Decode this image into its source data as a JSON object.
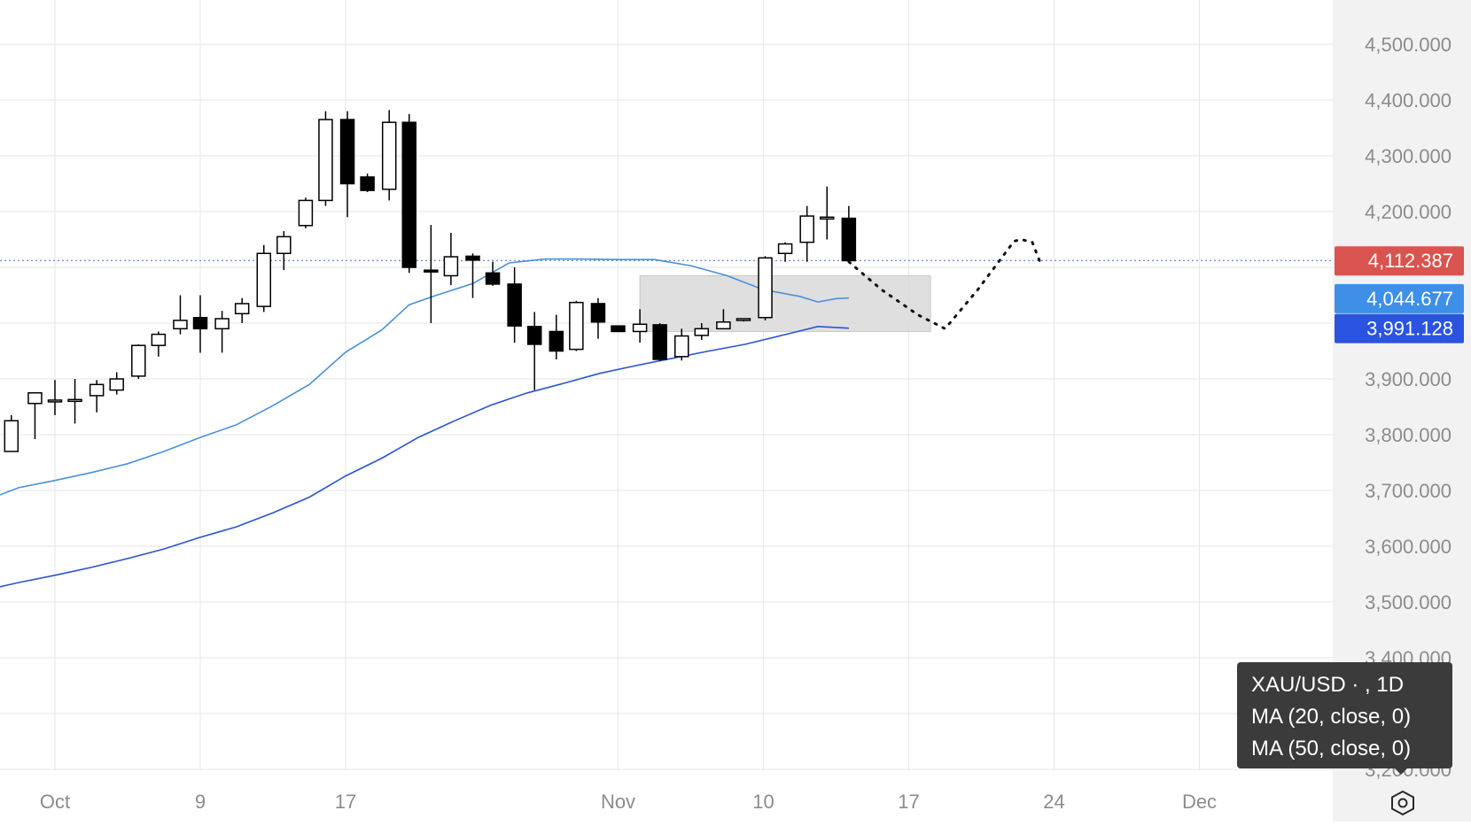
{
  "chart_data": {
    "type": "candlestick",
    "symbol": "XAU/USD",
    "legend": {
      "line1": "XAU/USD ·  , 1D",
      "line2": "MA (20, close, 0)",
      "line3": "MA (50, close, 0)"
    },
    "colors": {
      "up_body": "#ffffff",
      "down_body": "#000000",
      "ma20": "#4a90d9",
      "ma50": "#2a53d4",
      "last_price_badge": "#d9534f",
      "ma20_badge": "#3d8fe8",
      "ma50_badge": "#2a53e0",
      "zone": "#d9d9d9",
      "grid": "#e6e6e6"
    },
    "ylim": [
      3150,
      4560
    ],
    "y_ticks": [
      {
        "value": 4500,
        "label": "4,500.000"
      },
      {
        "value": 4400,
        "label": "4,400.000"
      },
      {
        "value": 4300,
        "label": "4,300.000"
      },
      {
        "value": 4200,
        "label": "4,200.000"
      },
      {
        "value": 3900,
        "label": "3,900.000"
      },
      {
        "value": 3800,
        "label": "3,800.000"
      },
      {
        "value": 3700,
        "label": "3,700.000"
      },
      {
        "value": 3600,
        "label": "3,600.000"
      },
      {
        "value": 3500,
        "label": "3,500.000"
      },
      {
        "value": 3400,
        "label": "3,400.000"
      },
      {
        "value": 3200,
        "label": "3,200.000"
      }
    ],
    "x_ticks": [
      {
        "day": 0,
        "label": "Oct"
      },
      {
        "day": 8,
        "label": "9"
      },
      {
        "day": 16,
        "label": "17"
      },
      {
        "day": 31,
        "label": "Nov"
      },
      {
        "day": 39,
        "label": "10"
      },
      {
        "day": 47,
        "label": "17"
      },
      {
        "day": 55,
        "label": "24"
      },
      {
        "day": 63,
        "label": "Dec"
      }
    ],
    "candles": [
      {
        "day": -2.4,
        "o": 3770,
        "h": 3835,
        "l": 3770,
        "c": 3825
      },
      {
        "day": -1.1,
        "o": 3856,
        "h": 3870,
        "l": 3792,
        "c": 3875
      },
      {
        "day": 0,
        "o": 3860,
        "h": 3898,
        "l": 3835,
        "c": 3862
      },
      {
        "day": 1.1,
        "o": 3861,
        "h": 3900,
        "l": 3820,
        "c": 3863
      },
      {
        "day": 2.3,
        "o": 3870,
        "h": 3898,
        "l": 3840,
        "c": 3890
      },
      {
        "day": 3.4,
        "o": 3880,
        "h": 3912,
        "l": 3872,
        "c": 3900
      },
      {
        "day": 4.6,
        "o": 3905,
        "h": 3962,
        "l": 3900,
        "c": 3960
      },
      {
        "day": 5.7,
        "o": 3960,
        "h": 3985,
        "l": 3940,
        "c": 3980
      },
      {
        "day": 6.9,
        "o": 3990,
        "h": 4050,
        "l": 3980,
        "c": 4005
      },
      {
        "day": 8.0,
        "o": 4010,
        "h": 4050,
        "l": 3947,
        "c": 3990
      },
      {
        "day": 9.2,
        "o": 3990,
        "h": 4022,
        "l": 3947,
        "c": 4008
      },
      {
        "day": 10.3,
        "o": 4017,
        "h": 4045,
        "l": 4000,
        "c": 4035
      },
      {
        "day": 11.5,
        "o": 4030,
        "h": 4140,
        "l": 4020,
        "c": 4125
      },
      {
        "day": 12.6,
        "o": 4125,
        "h": 4165,
        "l": 4095,
        "c": 4155
      },
      {
        "day": 13.8,
        "o": 4175,
        "h": 4225,
        "l": 4170,
        "c": 4220
      },
      {
        "day": 14.9,
        "o": 4220,
        "h": 4380,
        "l": 4210,
        "c": 4365
      },
      {
        "day": 16.1,
        "o": 4365,
        "h": 4380,
        "l": 4190,
        "c": 4250
      },
      {
        "day": 17.2,
        "o": 4262,
        "h": 4268,
        "l": 4235,
        "c": 4238
      },
      {
        "day": 18.4,
        "o": 4240,
        "h": 4382,
        "l": 4220,
        "c": 4360
      },
      {
        "day": 19.5,
        "o": 4360,
        "h": 4375,
        "l": 4090,
        "c": 4100
      },
      {
        "day": 20.7,
        "o": 4095,
        "h": 4176,
        "l": 4000,
        "c": 4092
      },
      {
        "day": 21.8,
        "o": 4085,
        "h": 4162,
        "l": 4068,
        "c": 4119
      },
      {
        "day": 23.0,
        "o": 4120,
        "h": 4125,
        "l": 4045,
        "c": 4113
      },
      {
        "day": 24.1,
        "o": 4090,
        "h": 4110,
        "l": 4067,
        "c": 4070
      },
      {
        "day": 25.3,
        "o": 4070,
        "h": 4100,
        "l": 3965,
        "c": 3995
      },
      {
        "day": 26.4,
        "o": 3994,
        "h": 4020,
        "l": 3880,
        "c": 3962
      },
      {
        "day": 27.6,
        "o": 3985,
        "h": 4015,
        "l": 3935,
        "c": 3950
      },
      {
        "day": 28.7,
        "o": 3953,
        "h": 4040,
        "l": 3950,
        "c": 4037
      },
      {
        "day": 29.9,
        "o": 4035,
        "h": 4045,
        "l": 3972,
        "c": 4002
      },
      {
        "day": 31.0,
        "o": 3995,
        "h": 3996,
        "l": 3985,
        "c": 3985
      },
      {
        "day": 32.2,
        "o": 3985,
        "h": 4025,
        "l": 3965,
        "c": 3998
      },
      {
        "day": 33.3,
        "o": 3997,
        "h": 4000,
        "l": 3932,
        "c": 3935
      },
      {
        "day": 34.5,
        "o": 3940,
        "h": 3990,
        "l": 3933,
        "c": 3977
      },
      {
        "day": 35.6,
        "o": 3978,
        "h": 4000,
        "l": 3970,
        "c": 3990
      },
      {
        "day": 36.8,
        "o": 3990,
        "h": 4025,
        "l": 3990,
        "c": 4002
      },
      {
        "day": 37.9,
        "o": 4005,
        "h": 4007,
        "l": 4003,
        "c": 4008
      },
      {
        "day": 39.1,
        "o": 4010,
        "h": 4120,
        "l": 4005,
        "c": 4117
      },
      {
        "day": 40.2,
        "o": 4125,
        "h": 4145,
        "l": 4110,
        "c": 4142
      },
      {
        "day": 41.4,
        "o": 4145,
        "h": 4210,
        "l": 4110,
        "c": 4192
      },
      {
        "day": 42.5,
        "o": 4187,
        "h": 4245,
        "l": 4150,
        "c": 4190
      },
      {
        "day": 43.7,
        "o": 4188,
        "h": 4210,
        "l": 4112,
        "c": 4112
      }
    ],
    "ma20": [
      {
        "day": -4,
        "v": 3680
      },
      {
        "day": -2,
        "v": 3705
      },
      {
        "day": 0,
        "v": 3718
      },
      {
        "day": 2,
        "v": 3732
      },
      {
        "day": 4,
        "v": 3748
      },
      {
        "day": 6,
        "v": 3770
      },
      {
        "day": 8,
        "v": 3795
      },
      {
        "day": 10,
        "v": 3818
      },
      {
        "day": 12,
        "v": 3852
      },
      {
        "day": 14,
        "v": 3890
      },
      {
        "day": 16,
        "v": 3948
      },
      {
        "day": 18,
        "v": 3988
      },
      {
        "day": 19.5,
        "v": 4033
      },
      {
        "day": 21,
        "v": 4050
      },
      {
        "day": 23,
        "v": 4071
      },
      {
        "day": 25,
        "v": 4108
      },
      {
        "day": 27,
        "v": 4115
      },
      {
        "day": 29,
        "v": 4115
      },
      {
        "day": 31,
        "v": 4114
      },
      {
        "day": 33,
        "v": 4114
      },
      {
        "day": 35,
        "v": 4103
      },
      {
        "day": 37,
        "v": 4085
      },
      {
        "day": 39,
        "v": 4060
      },
      {
        "day": 41,
        "v": 4048
      },
      {
        "day": 42,
        "v": 4038
      },
      {
        "day": 43,
        "v": 4044
      },
      {
        "day": 43.7,
        "v": 4045
      }
    ],
    "ma50": [
      {
        "day": -4,
        "v": 3520
      },
      {
        "day": -2,
        "v": 3535
      },
      {
        "day": 0,
        "v": 3548
      },
      {
        "day": 2,
        "v": 3562
      },
      {
        "day": 4,
        "v": 3578
      },
      {
        "day": 6,
        "v": 3595
      },
      {
        "day": 8,
        "v": 3616
      },
      {
        "day": 10,
        "v": 3635
      },
      {
        "day": 12,
        "v": 3660
      },
      {
        "day": 14,
        "v": 3688
      },
      {
        "day": 16,
        "v": 3726
      },
      {
        "day": 18,
        "v": 3758
      },
      {
        "day": 20,
        "v": 3795
      },
      {
        "day": 22,
        "v": 3825
      },
      {
        "day": 24,
        "v": 3853
      },
      {
        "day": 26,
        "v": 3875
      },
      {
        "day": 28,
        "v": 3892
      },
      {
        "day": 30,
        "v": 3910
      },
      {
        "day": 32,
        "v": 3924
      },
      {
        "day": 34,
        "v": 3937
      },
      {
        "day": 36,
        "v": 3950
      },
      {
        "day": 38,
        "v": 3962
      },
      {
        "day": 40,
        "v": 3978
      },
      {
        "day": 42,
        "v": 3994
      },
      {
        "day": 43.7,
        "v": 3991
      }
    ],
    "zone": {
      "day_start": 32.2,
      "day_end": 48.2,
      "top": 4085,
      "bottom": 3985
    },
    "projection": [
      {
        "day": 43.7,
        "v": 4110
      },
      {
        "day": 45.5,
        "v": 4060
      },
      {
        "day": 47.5,
        "v": 4015
      },
      {
        "day": 49.0,
        "v": 3990
      },
      {
        "day": 50.8,
        "v": 4060
      },
      {
        "day": 52.8,
        "v": 4147
      },
      {
        "day": 53.2,
        "v": 4150
      },
      {
        "day": 53.8,
        "v": 4145
      },
      {
        "day": 54.2,
        "v": 4112
      }
    ],
    "price_labels": {
      "last": {
        "value": 4112.387,
        "label": "4,112.387"
      },
      "ma20": {
        "value": 4044.677,
        "label": "4,044.677"
      },
      "ma50": {
        "value": 3991.128,
        "label": "3,991.128"
      }
    }
  },
  "ui": {
    "settings_icon": "gear-hexagon-icon"
  }
}
